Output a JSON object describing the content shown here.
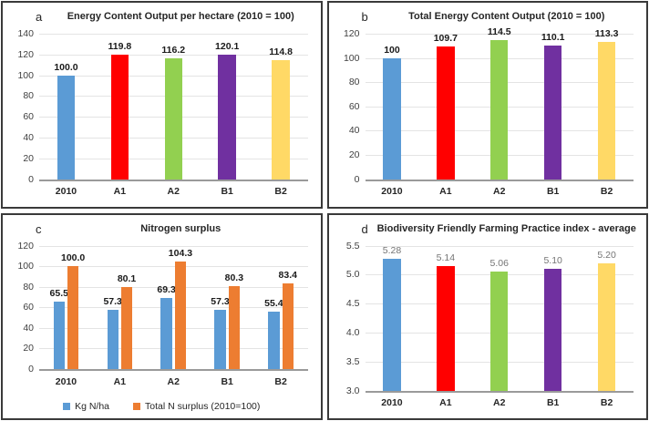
{
  "page": {
    "background": "#ffffff",
    "panel_border": "#3a3a3a"
  },
  "colors": {
    "blue": "#5B9BD5",
    "red": "#FF0000",
    "green": "#92D050",
    "purple": "#7030A0",
    "yellow": "#FFD966",
    "orange": "#ED7D31",
    "gridline": "#E4E4E4"
  },
  "chart_data": [
    {
      "type": "bar",
      "panel_label": "a",
      "title": "Energy Content Output per hectare (2010 = 100)",
      "categories": [
        "2010",
        "A1",
        "A2",
        "B1",
        "B2"
      ],
      "series": [
        {
          "name": "Energy Content Output per hectare",
          "values": [
            100.0,
            119.8,
            116.2,
            120.1,
            114.8
          ],
          "labels": [
            "100.0",
            "119.8",
            "116.2",
            "120.1",
            "114.8"
          ],
          "colors": [
            "#5B9BD5",
            "#FF0000",
            "#92D050",
            "#7030A0",
            "#FFD966"
          ]
        }
      ],
      "ylim": [
        0,
        140
      ],
      "ytick_values": [
        0,
        20,
        40,
        60,
        80,
        100,
        120,
        140
      ],
      "ytick_labels": [
        "0",
        "20",
        "40",
        "60",
        "80",
        "100",
        "120",
        "140"
      ],
      "grid": true,
      "legend": null,
      "value_label_color": "#1a1a1a",
      "value_label_bold": true
    },
    {
      "type": "bar",
      "panel_label": "b",
      "title": "Total Energy Content Output  (2010 = 100)",
      "categories": [
        "2010",
        "A1",
        "A2",
        "B1",
        "B2"
      ],
      "series": [
        {
          "name": "Total Energy Content Output",
          "values": [
            100,
            109.7,
            114.5,
            110.1,
            113.3
          ],
          "labels": [
            "100",
            "109.7",
            "114.5",
            "110.1",
            "113.3"
          ],
          "colors": [
            "#5B9BD5",
            "#FF0000",
            "#92D050",
            "#7030A0",
            "#FFD966"
          ]
        }
      ],
      "ylim": [
        0,
        120
      ],
      "ytick_values": [
        0,
        20,
        40,
        60,
        80,
        100,
        120
      ],
      "ytick_labels": [
        "0",
        "20",
        "40",
        "60",
        "80",
        "100",
        "120"
      ],
      "grid": true,
      "legend": null,
      "value_label_color": "#1a1a1a",
      "value_label_bold": true
    },
    {
      "type": "bar",
      "panel_label": "c",
      "title": "Nitrogen surplus",
      "categories": [
        "2010",
        "A1",
        "A2",
        "B1",
        "B2"
      ],
      "series": [
        {
          "name": "Kg N/ha",
          "values": [
            65.5,
            57.3,
            69.3,
            57.3,
            55.4
          ],
          "labels": [
            "65.5",
            "57.3",
            "69.3",
            "57.3",
            "55.4"
          ],
          "color": "#5B9BD5"
        },
        {
          "name": "Total N surplus (2010=100)",
          "values": [
            100.0,
            80.1,
            104.3,
            80.3,
            83.4
          ],
          "labels": [
            "100.0",
            "80.1",
            "104.3",
            "80.3",
            "83.4"
          ],
          "color": "#ED7D31"
        }
      ],
      "ylim": [
        0,
        120
      ],
      "ytick_values": [
        0,
        20,
        40,
        60,
        80,
        100,
        120
      ],
      "ytick_labels": [
        "0",
        "20",
        "40",
        "60",
        "80",
        "100",
        "120"
      ],
      "grid": true,
      "legend": {
        "position": "bottom",
        "labels": [
          "Kg N/ha",
          "Total N surplus (2010=100)"
        ]
      },
      "value_label_color": "#1a1a1a",
      "value_label_bold": true
    },
    {
      "type": "bar",
      "panel_label": "d",
      "title": "Biodiversity Friendly Farming Practice index - average",
      "categories": [
        "2010",
        "A1",
        "A2",
        "B1",
        "B2"
      ],
      "series": [
        {
          "name": "Biodiversity Friendly Farming Practice index",
          "values": [
            5.28,
            5.14,
            5.06,
            5.1,
            5.2
          ],
          "labels": [
            "5.28",
            "5.14",
            "5.06",
            "5.10",
            "5.20"
          ],
          "colors": [
            "#5B9BD5",
            "#FF0000",
            "#92D050",
            "#7030A0",
            "#FFD966"
          ]
        }
      ],
      "ylim": [
        3.0,
        5.5
      ],
      "ytick_values": [
        3.0,
        3.5,
        4.0,
        4.5,
        5.0,
        5.5
      ],
      "ytick_labels": [
        "3.0",
        "3.5",
        "4.0",
        "4.5",
        "5.0",
        "5.5"
      ],
      "grid": true,
      "legend": null,
      "value_label_color": "#757575",
      "value_label_bold": false
    }
  ]
}
